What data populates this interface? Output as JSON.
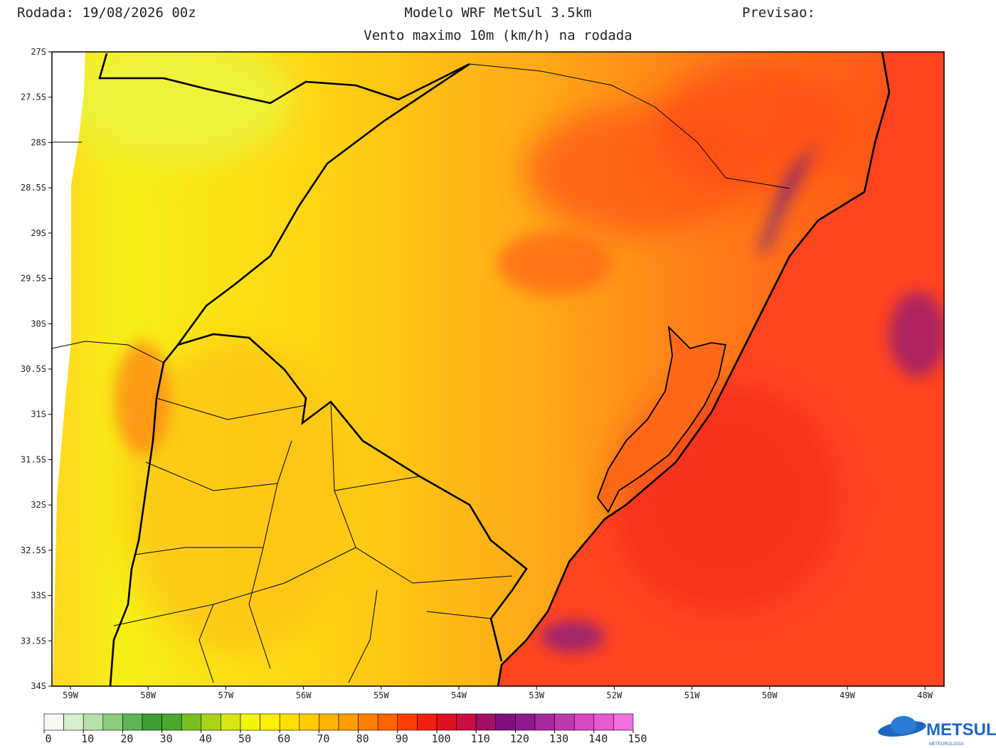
{
  "header": {
    "run": "Rodada: 19/08/2026 00z",
    "model": "Modelo WRF MetSul 3.5km",
    "forecast": "Previsao:",
    "subtitle": "Vento maximo 10m (km/h) na rodada"
  },
  "map": {
    "lat_labels": [
      "27S",
      "27.5S",
      "28S",
      "28.5S",
      "29S",
      "29.5S",
      "30S",
      "30.5S",
      "31S",
      "31.5S",
      "32S",
      "32.5S",
      "33S",
      "33.5S",
      "34S"
    ],
    "lon_labels": [
      "59W",
      "58W",
      "57W",
      "56W",
      "55W",
      "54W",
      "53W",
      "52W",
      "51W",
      "50W",
      "49W",
      "48W"
    ]
  },
  "colorbar": {
    "ticks": [
      0,
      10,
      20,
      30,
      40,
      50,
      60,
      70,
      80,
      90,
      100,
      110,
      120,
      130,
      140,
      150
    ],
    "colors": [
      "#f4fbf0",
      "#d8efd0",
      "#b5e0a8",
      "#8ccc7c",
      "#5db554",
      "#3d9e35",
      "#4aa82c",
      "#79bf22",
      "#a8d418",
      "#d6e812",
      "#f5f50a",
      "#fff000",
      "#ffe000",
      "#ffcc00",
      "#ffb400",
      "#ff9c00",
      "#ff8000",
      "#ff6400",
      "#ff4000",
      "#f02010",
      "#e01020",
      "#c81040",
      "#a01068",
      "#801080",
      "#901890",
      "#a828a0",
      "#c038b0",
      "#d848c0",
      "#e858d0",
      "#f070e0"
    ]
  },
  "logo": {
    "name": "METSUL",
    "tagline": "METEOROLOGIA"
  }
}
